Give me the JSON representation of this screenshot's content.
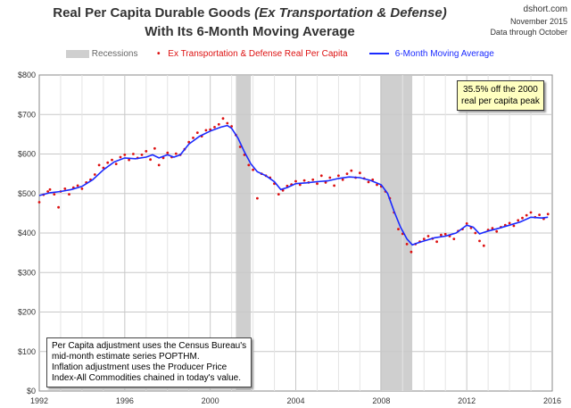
{
  "chart_data": {
    "type": "line",
    "title_line1": "Real Per Capita Durable Goods",
    "title_line1_italic": "(Ex Transportation & Defense)",
    "title_line2": "With Its 6-Month Moving Average",
    "source_site": "dshort.com",
    "source_date": "November 2015",
    "source_through": "Data through October",
    "legend": {
      "recessions": "Recessions",
      "dots": "Ex Transportation & Defense Real Per Capita",
      "line": "6-Month Moving Average"
    },
    "annotation_line1": "35.5% off the 2000",
    "annotation_line2": "real per capita peak",
    "note_lines": [
      "Per Capita adjustment uses the Census Bureau's",
      "mid-month estimate series POPTHM.",
      "Inflation adjustment uses the Producer Price",
      "Index-All Commodities chained in today's value."
    ],
    "x_ticks": [
      "1992",
      "1996",
      "2000",
      "2004",
      "2008",
      "2012",
      "2016"
    ],
    "y_ticks": [
      "$0",
      "$100",
      "$200",
      "$300",
      "$400",
      "$500",
      "$600",
      "$700",
      "$800"
    ],
    "xlim": [
      1992,
      2016
    ],
    "ylim": [
      0,
      800
    ],
    "grid": true,
    "recessions": [
      [
        2001.2,
        2001.9
      ],
      [
        2007.95,
        2009.45
      ]
    ],
    "colors": {
      "dots": "#dd1111",
      "line": "#1a2aff",
      "recession": "#cfcfcf",
      "grid": "#c8c8c8"
    },
    "series": [
      {
        "name": "6-Month Moving Average",
        "points": [
          [
            1992.0,
            495
          ],
          [
            1992.5,
            502
          ],
          [
            1993.0,
            505
          ],
          [
            1993.5,
            510
          ],
          [
            1994.0,
            518
          ],
          [
            1994.5,
            535
          ],
          [
            1995.0,
            560
          ],
          [
            1995.5,
            580
          ],
          [
            1996.0,
            590
          ],
          [
            1996.5,
            588
          ],
          [
            1997.0,
            592
          ],
          [
            1997.3,
            598
          ],
          [
            1997.6,
            590
          ],
          [
            1998.0,
            598
          ],
          [
            1998.3,
            592
          ],
          [
            1998.6,
            598
          ],
          [
            1999.0,
            625
          ],
          [
            1999.5,
            645
          ],
          [
            2000.0,
            658
          ],
          [
            2000.5,
            668
          ],
          [
            2000.8,
            672
          ],
          [
            2001.0,
            665
          ],
          [
            2001.3,
            640
          ],
          [
            2001.6,
            605
          ],
          [
            2001.9,
            575
          ],
          [
            2002.2,
            555
          ],
          [
            2002.6,
            545
          ],
          [
            2003.0,
            530
          ],
          [
            2003.3,
            510
          ],
          [
            2003.6,
            515
          ],
          [
            2004.0,
            525
          ],
          [
            2004.5,
            527
          ],
          [
            2005.0,
            530
          ],
          [
            2005.5,
            532
          ],
          [
            2006.0,
            538
          ],
          [
            2006.5,
            542
          ],
          [
            2007.0,
            540
          ],
          [
            2007.5,
            533
          ],
          [
            2008.0,
            522
          ],
          [
            2008.3,
            500
          ],
          [
            2008.6,
            455
          ],
          [
            2008.9,
            415
          ],
          [
            2009.2,
            385
          ],
          [
            2009.45,
            370
          ],
          [
            2009.7,
            375
          ],
          [
            2010.0,
            380
          ],
          [
            2010.5,
            388
          ],
          [
            2011.0,
            392
          ],
          [
            2011.5,
            400
          ],
          [
            2012.0,
            420
          ],
          [
            2012.3,
            415
          ],
          [
            2012.6,
            398
          ],
          [
            2013.0,
            405
          ],
          [
            2013.5,
            412
          ],
          [
            2014.0,
            420
          ],
          [
            2014.5,
            428
          ],
          [
            2015.0,
            440
          ],
          [
            2015.5,
            438
          ],
          [
            2015.8,
            440
          ]
        ]
      },
      {
        "name": "Ex Transportation & Defense Real Per Capita",
        "points": [
          [
            1992.0,
            478
          ],
          [
            1992.2,
            497
          ],
          [
            1992.4,
            505
          ],
          [
            1992.5,
            510
          ],
          [
            1992.7,
            498
          ],
          [
            1992.9,
            465
          ],
          [
            1993.0,
            505
          ],
          [
            1993.2,
            512
          ],
          [
            1993.4,
            498
          ],
          [
            1993.6,
            515
          ],
          [
            1993.8,
            520
          ],
          [
            1994.0,
            512
          ],
          [
            1994.2,
            528
          ],
          [
            1994.4,
            535
          ],
          [
            1994.6,
            548
          ],
          [
            1994.8,
            572
          ],
          [
            1995.0,
            565
          ],
          [
            1995.2,
            578
          ],
          [
            1995.4,
            585
          ],
          [
            1995.6,
            575
          ],
          [
            1995.8,
            592
          ],
          [
            1996.0,
            598
          ],
          [
            1996.2,
            585
          ],
          [
            1996.4,
            600
          ],
          [
            1996.6,
            590
          ],
          [
            1996.8,
            598
          ],
          [
            1997.0,
            607
          ],
          [
            1997.2,
            586
          ],
          [
            1997.4,
            614
          ],
          [
            1997.6,
            572
          ],
          [
            1997.8,
            590
          ],
          [
            1998.0,
            603
          ],
          [
            1998.2,
            592
          ],
          [
            1998.4,
            601
          ],
          [
            1998.6,
            598
          ],
          [
            1998.8,
            612
          ],
          [
            1999.0,
            630
          ],
          [
            1999.2,
            641
          ],
          [
            1999.4,
            654
          ],
          [
            1999.6,
            645
          ],
          [
            1999.8,
            660
          ],
          [
            2000.0,
            662
          ],
          [
            2000.2,
            668
          ],
          [
            2000.4,
            675
          ],
          [
            2000.6,
            690
          ],
          [
            2000.8,
            678
          ],
          [
            2001.0,
            670
          ],
          [
            2001.2,
            648
          ],
          [
            2001.4,
            618
          ],
          [
            2001.6,
            598
          ],
          [
            2001.8,
            572
          ],
          [
            2002.0,
            560
          ],
          [
            2002.2,
            488
          ],
          [
            2002.4,
            550
          ],
          [
            2002.6,
            545
          ],
          [
            2002.8,
            540
          ],
          [
            2003.0,
            525
          ],
          [
            2003.2,
            498
          ],
          [
            2003.4,
            508
          ],
          [
            2003.6,
            519
          ],
          [
            2003.8,
            523
          ],
          [
            2004.0,
            531
          ],
          [
            2004.2,
            522
          ],
          [
            2004.4,
            533
          ],
          [
            2004.6,
            528
          ],
          [
            2004.8,
            535
          ],
          [
            2005.0,
            525
          ],
          [
            2005.2,
            545
          ],
          [
            2005.4,
            528
          ],
          [
            2005.6,
            540
          ],
          [
            2005.8,
            520
          ],
          [
            2006.0,
            545
          ],
          [
            2006.2,
            535
          ],
          [
            2006.4,
            550
          ],
          [
            2006.6,
            558
          ],
          [
            2006.8,
            540
          ],
          [
            2007.0,
            552
          ],
          [
            2007.2,
            538
          ],
          [
            2007.4,
            529
          ],
          [
            2007.6,
            535
          ],
          [
            2007.8,
            522
          ],
          [
            2008.0,
            518
          ],
          [
            2008.2,
            505
          ],
          [
            2008.4,
            488
          ],
          [
            2008.6,
            452
          ],
          [
            2008.8,
            410
          ],
          [
            2009.0,
            398
          ],
          [
            2009.2,
            372
          ],
          [
            2009.4,
            352
          ],
          [
            2009.6,
            372
          ],
          [
            2009.8,
            378
          ],
          [
            2010.0,
            385
          ],
          [
            2010.2,
            392
          ],
          [
            2010.4,
            386
          ],
          [
            2010.6,
            378
          ],
          [
            2010.8,
            395
          ],
          [
            2011.0,
            397
          ],
          [
            2011.2,
            392
          ],
          [
            2011.4,
            385
          ],
          [
            2011.6,
            405
          ],
          [
            2011.8,
            410
          ],
          [
            2012.0,
            424
          ],
          [
            2012.2,
            413
          ],
          [
            2012.4,
            400
          ],
          [
            2012.6,
            380
          ],
          [
            2012.8,
            368
          ],
          [
            2013.0,
            408
          ],
          [
            2013.2,
            412
          ],
          [
            2013.4,
            404
          ],
          [
            2013.6,
            415
          ],
          [
            2013.8,
            420
          ],
          [
            2014.0,
            425
          ],
          [
            2014.2,
            418
          ],
          [
            2014.4,
            432
          ],
          [
            2014.6,
            438
          ],
          [
            2014.8,
            445
          ],
          [
            2015.0,
            452
          ],
          [
            2015.2,
            440
          ],
          [
            2015.4,
            446
          ],
          [
            2015.6,
            436
          ],
          [
            2015.8,
            448
          ]
        ]
      }
    ]
  }
}
